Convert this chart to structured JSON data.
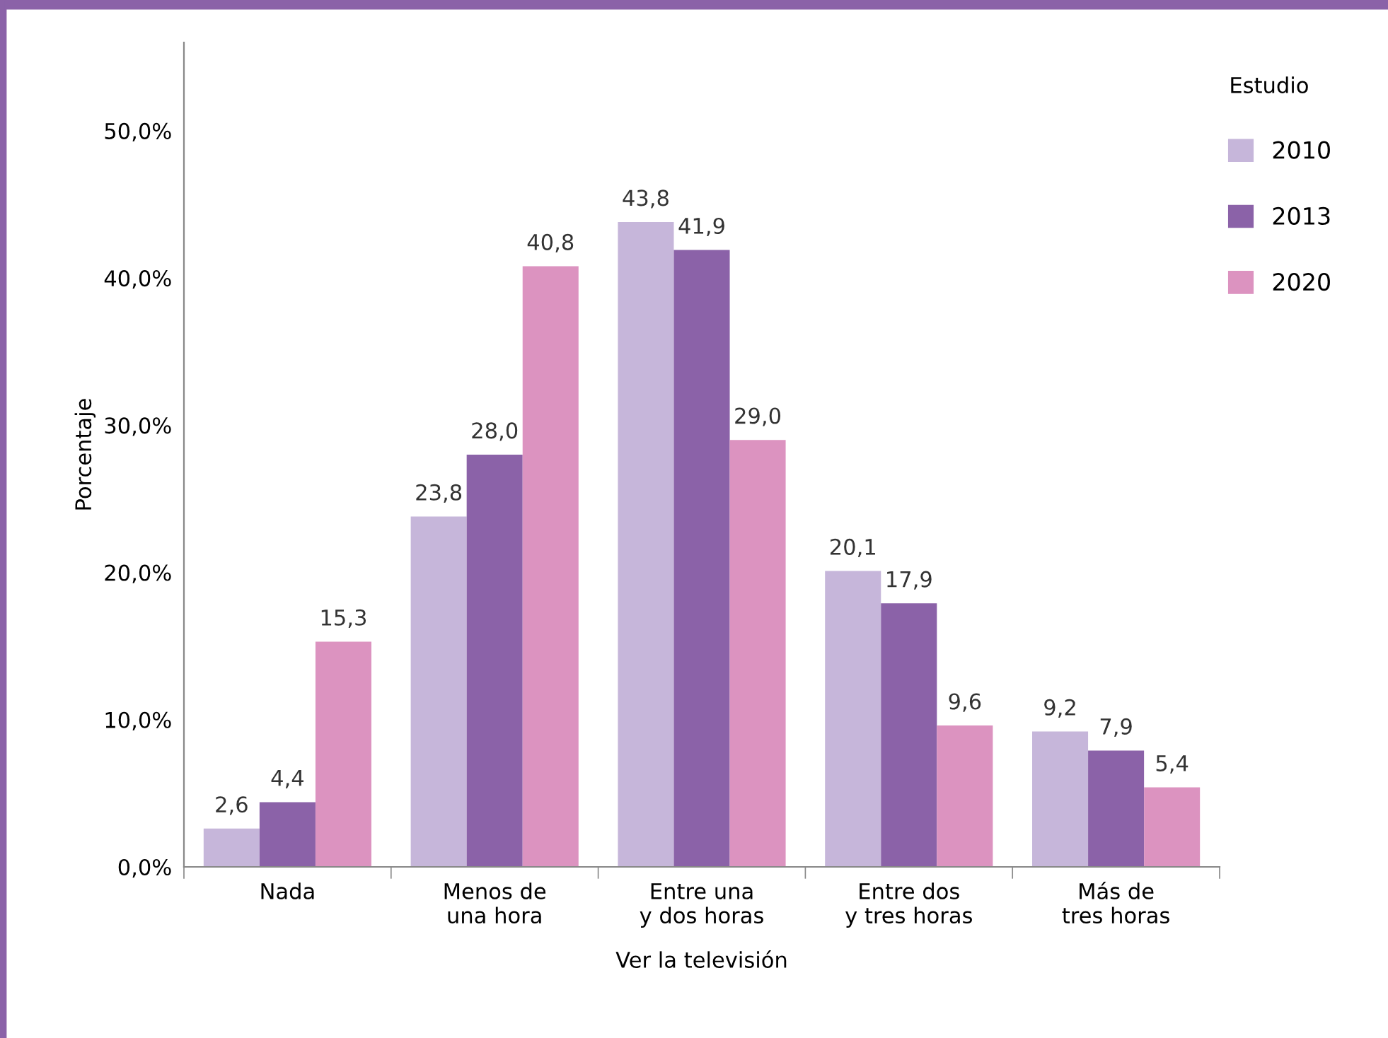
{
  "chart_data": {
    "type": "bar",
    "xlabel": "Ver la televisión",
    "ylabel": "Porcentaje",
    "legend_title": "Estudio",
    "categories": [
      "Nada",
      "Menos de\nuna hora",
      "Entre una\ny dos horas",
      "Entre dos\ny tres horas",
      "Más de\ntres horas"
    ],
    "series": [
      {
        "name": "2010",
        "color": "#c6b6da",
        "values": [
          2.6,
          23.8,
          43.8,
          20.1,
          9.2
        ],
        "value_labels": [
          "2,6",
          "23,8",
          "43,8",
          "20,1",
          "9,2"
        ]
      },
      {
        "name": "2013",
        "color": "#8b62a8",
        "values": [
          4.4,
          28.0,
          41.9,
          17.9,
          7.9
        ],
        "value_labels": [
          "4,4",
          "28,0",
          "41,9",
          "17,9",
          "7,9"
        ]
      },
      {
        "name": "2020",
        "color": "#dc93c0",
        "values": [
          15.3,
          40.8,
          29.0,
          9.6,
          5.4
        ],
        "value_labels": [
          "15,3",
          "40,8",
          "29,0",
          "9,6",
          "5,4"
        ]
      }
    ],
    "ylim": [
      0,
      56
    ],
    "yticks": [
      {
        "value": 0,
        "label": "0,0%"
      },
      {
        "value": 10,
        "label": "10,0%"
      },
      {
        "value": 20,
        "label": "20,0%"
      },
      {
        "value": 30,
        "label": "30,0%"
      },
      {
        "value": 40,
        "label": "40,0%"
      },
      {
        "value": 50,
        "label": "50,0%"
      }
    ],
    "grid": false,
    "legend": "right"
  }
}
